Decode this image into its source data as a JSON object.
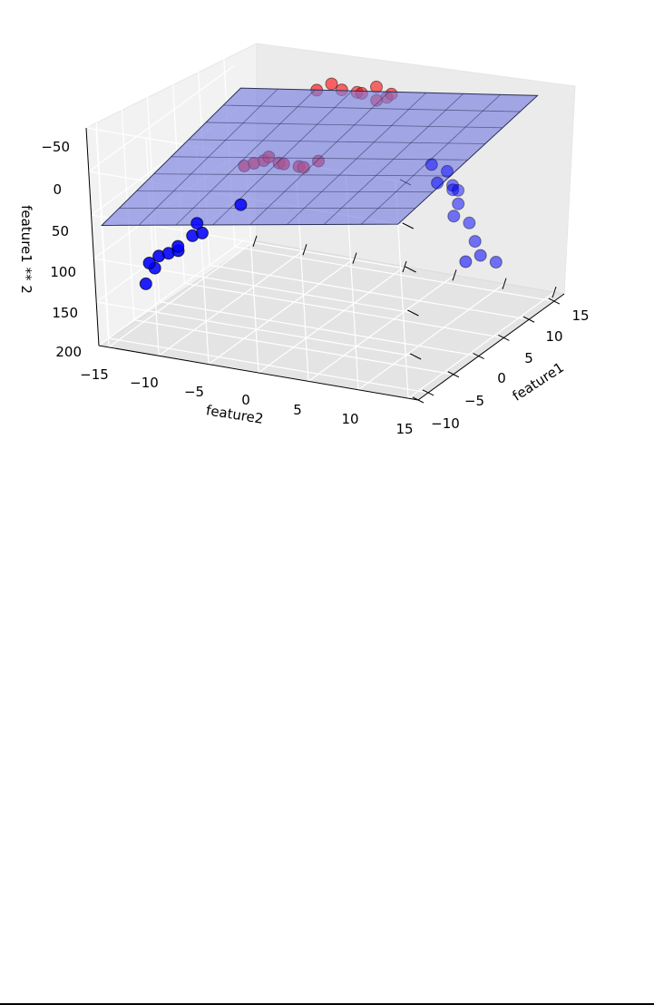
{
  "chart_data": {
    "type": "scatter3d",
    "title": "",
    "xlabel": "feature1",
    "ylabel": "feature2",
    "zlabel": "feature1 ** 2",
    "x_ticks": [
      "−10",
      "−5",
      "0",
      "5",
      "10",
      "15"
    ],
    "y_ticks": [
      "−15",
      "−10",
      "−5",
      "0",
      "5",
      "10",
      "15"
    ],
    "z_ticks": [
      "−50",
      "0",
      "50",
      "100",
      "150",
      "200"
    ],
    "xlim": [
      -12,
      17
    ],
    "ylim": [
      -16,
      16
    ],
    "zlim": [
      -50,
      200
    ],
    "z_inverted": true,
    "grid": true,
    "colors": {
      "class0": "#0000ff",
      "class1": "#ff0000",
      "plane": "#7b7fe0",
      "plane_edge": "#2a2f55"
    },
    "plane": {
      "description": "",
      "x_range": [
        -12,
        16
      ],
      "y_range": [
        -15,
        15
      ],
      "z_at_corners": [
        60,
        20,
        0,
        -30
      ]
    },
    "series": [
      {
        "name": "",
        "color": "#0000ff",
        "points": [
          {
            "x": -8,
            "y": -13,
            "z": 140
          },
          {
            "x": -8,
            "y": -12,
            "z": 120
          },
          {
            "x": -9,
            "y": -12,
            "z": 110
          },
          {
            "x": -9,
            "y": -11,
            "z": 100
          },
          {
            "x": -9,
            "y": -10,
            "z": 95
          },
          {
            "x": -9,
            "y": -9,
            "z": 90
          },
          {
            "x": -8,
            "y": -8,
            "z": 75
          },
          {
            "x": -8,
            "y": -7,
            "z": 70
          },
          {
            "x": -9,
            "y": -9,
            "z": 85
          },
          {
            "x": -7,
            "y": -8,
            "z": 65
          },
          {
            "x": -6,
            "y": -4,
            "z": 40
          },
          {
            "x": 12,
            "y": 6,
            "z": 50
          },
          {
            "x": 13,
            "y": 7,
            "z": 60
          },
          {
            "x": 12,
            "y": 8,
            "z": 70
          },
          {
            "x": 11,
            "y": 7,
            "z": 65
          },
          {
            "x": 12,
            "y": 8,
            "z": 75
          },
          {
            "x": 11,
            "y": 9,
            "z": 85
          },
          {
            "x": 10,
            "y": 9,
            "z": 95
          },
          {
            "x": 11,
            "y": 10,
            "z": 105
          },
          {
            "x": 10,
            "y": 11,
            "z": 120
          },
          {
            "x": 13,
            "y": 8,
            "z": 80
          },
          {
            "x": 9,
            "y": 12,
            "z": 130
          },
          {
            "x": 10,
            "y": 13,
            "z": 140
          },
          {
            "x": 8,
            "y": 11,
            "z": 135
          }
        ]
      },
      {
        "name": "",
        "color": "#ff0000",
        "points": [
          {
            "x": -3,
            "y": -5,
            "z": 10
          },
          {
            "x": -3,
            "y": -4,
            "z": 5
          },
          {
            "x": -3,
            "y": -3,
            "z": 0
          },
          {
            "x": -2,
            "y": -3,
            "z": 0
          },
          {
            "x": -2,
            "y": -2,
            "z": 5
          },
          {
            "x": -3,
            "y": -1,
            "z": 0
          },
          {
            "x": -2,
            "y": 0,
            "z": 5
          },
          {
            "x": -3,
            "y": 1,
            "z": 0
          },
          {
            "x": -2,
            "y": 2,
            "z": -5
          },
          {
            "x": 6,
            "y": -2,
            "z": -45
          },
          {
            "x": 7,
            "y": -1,
            "z": -50
          },
          {
            "x": 7,
            "y": 0,
            "z": -45
          },
          {
            "x": 8,
            "y": 1,
            "z": -40
          },
          {
            "x": 7,
            "y": 2,
            "z": -45
          },
          {
            "x": 8,
            "y": 3,
            "z": -50
          },
          {
            "x": 6,
            "y": 4,
            "z": -45
          },
          {
            "x": 8,
            "y": 4,
            "z": -40
          },
          {
            "x": 7,
            "y": 5,
            "z": -50
          }
        ]
      }
    ]
  }
}
